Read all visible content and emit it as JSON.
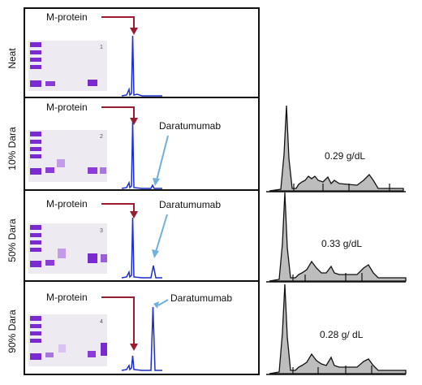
{
  "panels": [
    {
      "row_label": "Neat",
      "gel_number": "1",
      "mprotein_label": "M-protein",
      "dara_label": "",
      "concentration": ""
    },
    {
      "row_label": "10% Dara",
      "gel_number": "2",
      "mprotein_label": "M-protein",
      "dara_label": "Daratumumab",
      "concentration": "0.29 g/dL"
    },
    {
      "row_label": "50% Dara",
      "gel_number": "3",
      "mprotein_label": "M-protein",
      "dara_label": "Daratumumab",
      "concentration": "0.33 g/dL"
    },
    {
      "row_label": "90% Dara",
      "gel_number": "4",
      "mprotein_label": "M-protein",
      "dara_label": "Daratumumab",
      "concentration": "0.28 g/ dL"
    }
  ],
  "colors": {
    "mprotein_arrow": "#9b1b30",
    "dara_arrow": "#6fb1de",
    "trace": "#1a2ecc",
    "gel_band": "#7a2bd0",
    "gel_background": "#eeeaf2",
    "densitometry_fill": "#bdbdbd",
    "frame": "#111111"
  }
}
